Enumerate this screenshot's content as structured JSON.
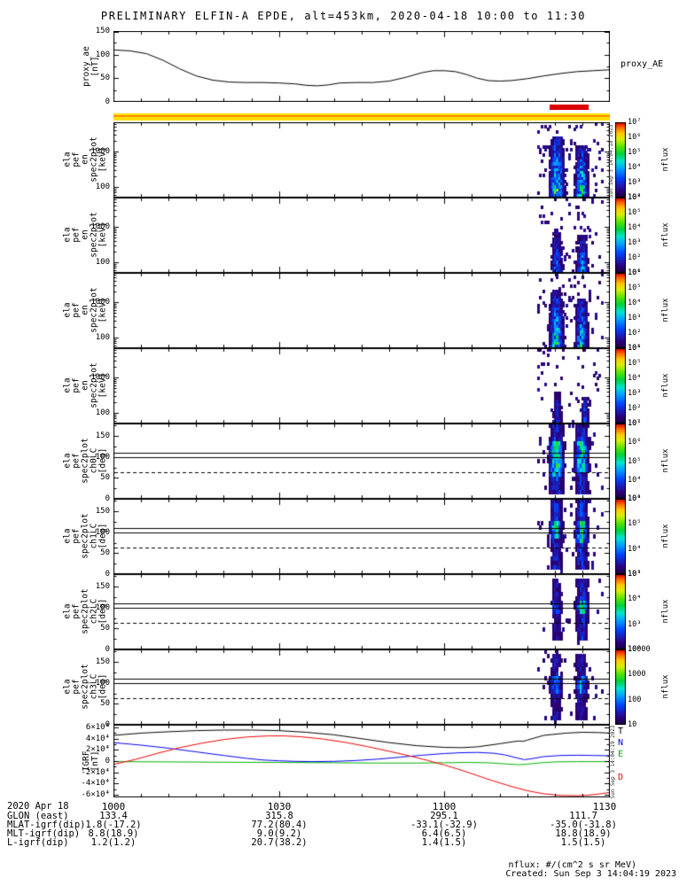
{
  "title": "PRELIMINARY ELFIN-A EPDE, alt=453km, 2020-04-18 10:00 to 11:30",
  "colors": {
    "survey_bar": "#ffdf00",
    "survey_accent": "#ff9000",
    "science_zone": "#dd0000",
    "igrf_T": "#000000",
    "igrf_N": "#0000ee",
    "igrf_E": "#00b000",
    "igrf_D": "#ee0000"
  },
  "xaxis": {
    "tick_labels": [
      "1000",
      "1030",
      "1100",
      "1130"
    ]
  },
  "proxy_panel": {
    "label": "proxy_ae\n[nT]",
    "right_label": "proxy_AE",
    "ytick_labels": [
      "150",
      "100",
      "50",
      "0"
    ]
  },
  "spec_panels": [
    {
      "label": "ela\npef\nen\nspec2plot\n[keV]",
      "ytick_labels": [
        "1000",
        "100"
      ],
      "colorbar_labels": [
        "10⁷",
        "10⁶",
        "10⁵",
        "10⁴",
        "10³",
        "10²"
      ],
      "colorbar_title": "nflux"
    },
    {
      "label": "ela\npef\nen\nspec2plot\n[keV]",
      "ytick_labels": [
        "1000",
        "100"
      ],
      "colorbar_labels": [
        "10⁶",
        "10⁵",
        "10⁴",
        "10³",
        "10²",
        "10¹"
      ],
      "colorbar_title": "nflux"
    },
    {
      "label": "ela\npef\nen\nspec2plot\n[keV]",
      "ytick_labels": [
        "1000",
        "100"
      ],
      "colorbar_labels": [
        "10⁶",
        "10⁵",
        "10⁴",
        "10³",
        "10²",
        "10¹"
      ],
      "colorbar_title": "nflux"
    },
    {
      "label": "ela\npef\nen\nspec2plot\n[keV]",
      "ytick_labels": [
        "1000",
        "100"
      ],
      "colorbar_labels": [
        "10⁶",
        "10⁵",
        "10⁴",
        "10³",
        "10²",
        "10¹"
      ],
      "colorbar_title": "nflux"
    },
    {
      "label": "ela\npef\nspec2plot\nch0LC\n[deg]",
      "ytick_labels": [
        "150",
        "100",
        "50",
        "0"
      ],
      "colorbar_labels": [
        "10⁷",
        "10⁶",
        "10⁵",
        "10⁴",
        "10³"
      ],
      "colorbar_title": "nflux"
    },
    {
      "label": "ela\npef\nspec2plot\nch1LC\n[deg]",
      "ytick_labels": [
        "150",
        "100",
        "50",
        "0"
      ],
      "colorbar_labels": [
        "10⁶",
        "10⁵",
        "10⁴",
        "10³"
      ],
      "colorbar_title": "nflux"
    },
    {
      "label": "ela\npef\nspec2plot\nch2LC\n[deg]",
      "ytick_labels": [
        "150",
        "100",
        "50",
        "0"
      ],
      "colorbar_labels": [
        "10⁵",
        "10⁴",
        "10³",
        "10²"
      ],
      "colorbar_title": "nflux"
    },
    {
      "label": "ela\npef\nspec2plot\nch3LC\n[deg]",
      "ytick_labels": [
        "150",
        "100",
        "50",
        "0"
      ],
      "colorbar_labels": [
        "10000",
        "1000",
        "100",
        "10"
      ],
      "colorbar_title": "nflux"
    }
  ],
  "igrf_panel": {
    "label": "IGRF\n[nT]",
    "ytick_labels": [
      "6×10⁴",
      "4×10⁴",
      "2×10⁴",
      "0",
      "-2×10⁴",
      "-4×10⁴",
      "-6×10⁴"
    ],
    "line_labels": [
      "T",
      "N",
      "E",
      "D"
    ]
  },
  "footer": {
    "date": "2020 Apr 18",
    "rows": [
      {
        "label": "GLON (east)",
        "values": [
          "133.4",
          "315.8",
          "295.1",
          "111.7"
        ]
      },
      {
        "label": "MLAT-igrf(dip)",
        "values": [
          "1.8(-17.2)",
          "77.2(80.4)",
          "-33.1(-32.9)",
          "-35.0(-31.8)"
        ]
      },
      {
        "label": "MLT-igrf(dip)",
        "values": [
          "8.8(18.9)",
          "9.0(9.2)",
          "6.4(6.5)",
          "18.8(18.9)"
        ]
      },
      {
        "label": "L-igrf(dip)",
        "values": [
          "1.2(1.2)",
          "20.7(38.2)",
          "1.4(1.5)",
          "1.5(1.5)"
        ]
      }
    ],
    "unit_note": "nflux: #/(cm^2 s sr MeV)",
    "created": "Created: Sun Sep  3 14:04:19 2023"
  },
  "watermarks": {
    "spec_timestamp": "Sun Sep  3 14:04:18 2023",
    "igrf_timestamp": "Sun Sep  3 14:04:19 2023"
  },
  "chart_data": {
    "time_axis": {
      "start": "10:00",
      "end": "11:30",
      "tick_minutes": [
        0,
        30,
        60,
        90
      ],
      "tick_labels": [
        "1000",
        "1030",
        "1100",
        "1130"
      ]
    },
    "science_zone_minutes": [
      79.0,
      86.2
    ],
    "proxy_ae": {
      "type": "line",
      "ylim": [
        0,
        150
      ],
      "ylabel": "proxy_ae [nT]",
      "points": [
        [
          0,
          110
        ],
        [
          3,
          108
        ],
        [
          6,
          102
        ],
        [
          9,
          88
        ],
        [
          12,
          70
        ],
        [
          15,
          55
        ],
        [
          18,
          46
        ],
        [
          21,
          42
        ],
        [
          24,
          41
        ],
        [
          27,
          41
        ],
        [
          30,
          40
        ],
        [
          33,
          38
        ],
        [
          35,
          35
        ],
        [
          37,
          34
        ],
        [
          39,
          36
        ],
        [
          41,
          40
        ],
        [
          44,
          41
        ],
        [
          47,
          41
        ],
        [
          50,
          44
        ],
        [
          53,
          52
        ],
        [
          56,
          62
        ],
        [
          58,
          66
        ],
        [
          60,
          66
        ],
        [
          62,
          64
        ],
        [
          64,
          58
        ],
        [
          66,
          50
        ],
        [
          68,
          45
        ],
        [
          70,
          44
        ],
        [
          72,
          45
        ],
        [
          75,
          49
        ],
        [
          78,
          55
        ],
        [
          81,
          60
        ],
        [
          84,
          64
        ],
        [
          87,
          66
        ],
        [
          90,
          68
        ]
      ]
    },
    "energy_spectrograms": [
      {
        "name": "ela_pef_en_spec2plot panel 1",
        "type": "heatmap",
        "yscale": "log",
        "ylim_kev": [
          50,
          6800
        ],
        "z_ticks": [
          "10⁷",
          "10⁶",
          "10⁵",
          "10⁴",
          "10³",
          "10²"
        ],
        "seed": 11,
        "speckle": 0.085,
        "scale": 0.72,
        "bursts": [
          {
            "t_min": 80.3,
            "halfwidth_min": 1.0,
            "max_energy_kev": 2600,
            "intensity": 0.95
          },
          {
            "t_min": 84.8,
            "halfwidth_min": 0.9,
            "max_energy_kev": 1600,
            "intensity": 0.9
          }
        ]
      },
      {
        "name": "ela_pef_en_spec2plot panel 2",
        "type": "heatmap",
        "yscale": "log",
        "ylim_kev": [
          50,
          6800
        ],
        "z_ticks": [
          "10⁶",
          "10⁵",
          "10⁴",
          "10³",
          "10²",
          "10¹"
        ],
        "seed": 22,
        "speckle": 0.06,
        "scale": 0.68,
        "bursts": [
          {
            "t_min": 80.3,
            "halfwidth_min": 0.8,
            "max_energy_kev": 900,
            "intensity": 0.5
          },
          {
            "t_min": 84.9,
            "halfwidth_min": 0.8,
            "max_energy_kev": 600,
            "intensity": 0.7
          }
        ]
      },
      {
        "name": "ela_pef_en_spec2plot panel 3",
        "type": "heatmap",
        "yscale": "log",
        "ylim_kev": [
          50,
          6800
        ],
        "z_ticks": [
          "10⁶",
          "10⁵",
          "10⁴",
          "10³",
          "10²",
          "10¹"
        ],
        "seed": 33,
        "speckle": 0.075,
        "scale": 0.7,
        "bursts": [
          {
            "t_min": 80.2,
            "halfwidth_min": 0.95,
            "max_energy_kev": 2200,
            "intensity": 0.85
          },
          {
            "t_min": 84.8,
            "halfwidth_min": 0.85,
            "max_energy_kev": 1300,
            "intensity": 0.85
          }
        ]
      },
      {
        "name": "ela_pef_en_spec2plot panel 4",
        "type": "heatmap",
        "yscale": "log",
        "ylim_kev": [
          50,
          6800
        ],
        "z_ticks": [
          "10⁶",
          "10⁵",
          "10⁴",
          "10³",
          "10²",
          "10¹"
        ],
        "seed": 44,
        "speckle": 0.05,
        "scale": 0.68,
        "bursts": [
          {
            "t_min": 80.4,
            "halfwidth_min": 0.6,
            "max_energy_kev": 400,
            "intensity": 0.4
          },
          {
            "t_min": 85.4,
            "halfwidth_min": 0.5,
            "max_energy_kev": 260,
            "intensity": 0.65
          }
        ]
      }
    ],
    "pitch_spectrograms": [
      {
        "name": "ela_pef_spec2plot_ch0LC",
        "type": "heatmap",
        "ylim_deg": [
          0,
          180
        ],
        "seed": 55,
        "speckle": 0.05,
        "scale": 0.72,
        "bursts": [
          {
            "t_min": 80.2,
            "halfwidth_min": 1.05,
            "deg_min": 8,
            "deg_max": 176,
            "core_deg": [
              55,
              135
            ],
            "intensity": 0.85
          },
          {
            "t_min": 84.8,
            "halfwidth_min": 1.0,
            "deg_min": 10,
            "deg_max": 176,
            "core_deg": [
              65,
              140
            ],
            "intensity": 0.8
          }
        ],
        "solid_lines_deg": [
          100.5,
          111
        ],
        "dashed_lines_deg": [
          63
        ]
      },
      {
        "name": "ela_pef_spec2plot_ch1LC",
        "type": "heatmap",
        "ylim_deg": [
          0,
          180
        ],
        "seed": 66,
        "speckle": 0.045,
        "scale": 0.72,
        "bursts": [
          {
            "t_min": 80.1,
            "halfwidth_min": 0.85,
            "deg_min": 15,
            "deg_max": 175,
            "core_deg": [
              85,
              125
            ],
            "intensity": 0.75
          },
          {
            "t_min": 84.8,
            "halfwidth_min": 0.9,
            "deg_min": 15,
            "deg_max": 175,
            "core_deg": [
              78,
              125
            ],
            "intensity": 0.85
          }
        ],
        "solid_lines_deg": [
          100.5,
          111
        ],
        "dashed_lines_deg": [
          63
        ]
      },
      {
        "name": "ela_pef_spec2plot_ch2LC",
        "type": "heatmap",
        "ylim_deg": [
          0,
          180
        ],
        "seed": 77,
        "speckle": 0.04,
        "scale": 0.72,
        "bursts": [
          {
            "t_min": 80.2,
            "halfwidth_min": 0.7,
            "deg_min": 20,
            "deg_max": 170,
            "core_deg": [
              88,
              120
            ],
            "intensity": 0.5
          },
          {
            "t_min": 84.9,
            "halfwidth_min": 0.9,
            "deg_min": 18,
            "deg_max": 172,
            "core_deg": [
              85,
              115
            ],
            "intensity": 0.8
          }
        ],
        "solid_lines_deg": [
          100.5,
          111
        ],
        "dashed_lines_deg": [
          63
        ]
      },
      {
        "name": "ela_pef_spec2plot_ch3LC",
        "type": "heatmap",
        "ylim_deg": [
          0,
          180
        ],
        "seed": 88,
        "speckle": 0.045,
        "scale": 0.68,
        "bursts": [
          {
            "t_min": 80.1,
            "halfwidth_min": 0.85,
            "deg_min": 15,
            "deg_max": 172,
            "core_deg": [
              78,
              120
            ],
            "intensity": 0.6
          },
          {
            "t_min": 84.7,
            "halfwidth_min": 0.9,
            "deg_min": 15,
            "deg_max": 172,
            "core_deg": [
              75,
              115
            ],
            "intensity": 0.6
          }
        ],
        "solid_lines_deg": [
          100.5,
          111
        ],
        "dashed_lines_deg": [
          63
        ]
      }
    ],
    "igrf": {
      "type": "line",
      "ylim_nT": [
        -65000,
        65000
      ],
      "series": [
        {
          "name": "T",
          "color_key": "igrf_T",
          "points": [
            [
              0,
              46000
            ],
            [
              5,
              50000
            ],
            [
              10,
              52500
            ],
            [
              15,
              54500
            ],
            [
              20,
              55500
            ],
            [
              25,
              55500
            ],
            [
              30,
              54500
            ],
            [
              35,
              51500
            ],
            [
              40,
              47000
            ],
            [
              45,
              40000
            ],
            [
              50,
              33000
            ],
            [
              55,
              27500
            ],
            [
              60,
              24500
            ],
            [
              63,
              24000
            ],
            [
              66,
              25500
            ],
            [
              70,
              31000
            ],
            [
              72,
              34000
            ],
            [
              73.5,
              36000
            ],
            [
              74.2,
              35200
            ],
            [
              75,
              37500
            ],
            [
              78,
              46000
            ],
            [
              82,
              50000
            ],
            [
              85,
              51500
            ],
            [
              88,
              51000
            ],
            [
              90,
              50000
            ]
          ]
        },
        {
          "name": "N",
          "color_key": "igrf_N",
          "points": [
            [
              0,
              33000
            ],
            [
              5,
              28500
            ],
            [
              10,
              23000
            ],
            [
              15,
              16500
            ],
            [
              20,
              10000
            ],
            [
              24,
              5000
            ],
            [
              27,
              2000
            ],
            [
              30,
              500
            ],
            [
              33,
              -500
            ],
            [
              36,
              -1000
            ],
            [
              40,
              -500
            ],
            [
              44,
              1000
            ],
            [
              48,
              3500
            ],
            [
              52,
              7000
            ],
            [
              56,
              10500
            ],
            [
              60,
              13500
            ],
            [
              63,
              15000
            ],
            [
              66,
              15500
            ],
            [
              69,
              14000
            ],
            [
              71,
              11000
            ],
            [
              73,
              6000
            ],
            [
              74.5,
              2500
            ],
            [
              76,
              4500
            ],
            [
              78,
              8000
            ],
            [
              81,
              10000
            ],
            [
              84,
              10500
            ],
            [
              87,
              10000
            ],
            [
              90,
              9500
            ]
          ]
        },
        {
          "name": "E",
          "color_key": "igrf_E",
          "points": [
            [
              0,
              -1000
            ],
            [
              10,
              -1500
            ],
            [
              20,
              -2000
            ],
            [
              30,
              -2500
            ],
            [
              40,
              -3000
            ],
            [
              48,
              -3500
            ],
            [
              55,
              -3500
            ],
            [
              60,
              -3000
            ],
            [
              64,
              -2500
            ],
            [
              68,
              -3000
            ],
            [
              71,
              -5000
            ],
            [
              73.5,
              -6500
            ],
            [
              75,
              -5500
            ],
            [
              77,
              -3500
            ],
            [
              80,
              -1500
            ],
            [
              84,
              -1000
            ],
            [
              90,
              -1000
            ]
          ]
        },
        {
          "name": "D",
          "color_key": "igrf_D",
          "points": [
            [
              0,
              -6000
            ],
            [
              4,
              3000
            ],
            [
              8,
              14000
            ],
            [
              12,
              24000
            ],
            [
              16,
              32000
            ],
            [
              20,
              38500
            ],
            [
              24,
              43000
            ],
            [
              28,
              45000
            ],
            [
              31,
              45000
            ],
            [
              34,
              43500
            ],
            [
              38,
              39500
            ],
            [
              42,
              33500
            ],
            [
              46,
              26000
            ],
            [
              50,
              17500
            ],
            [
              54,
              8500
            ],
            [
              57,
              1000
            ],
            [
              60,
              -7000
            ],
            [
              63,
              -16000
            ],
            [
              66,
              -26000
            ],
            [
              69,
              -36000
            ],
            [
              72,
              -45000
            ],
            [
              75,
              -53000
            ],
            [
              78,
              -58500
            ],
            [
              81,
              -61500
            ],
            [
              84,
              -62000
            ],
            [
              86,
              -61000
            ],
            [
              88,
              -59000
            ],
            [
              90,
              -56000
            ]
          ]
        }
      ]
    }
  }
}
